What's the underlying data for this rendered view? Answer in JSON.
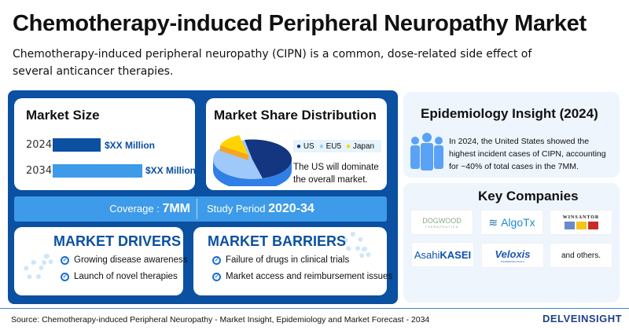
{
  "header": {
    "title": "Chemotherapy-induced Peripheral Neuropathy Market",
    "subtitle": "Chemotherapy-induced peripheral neuropathy (CIPN) is a common, dose-related side effect of several anticancer therapies."
  },
  "market_size": {
    "title": "Market Size",
    "bars": [
      {
        "year": "2024",
        "value": "$XX Million",
        "color": "#0b50a1",
        "relative": 0.57
      },
      {
        "year": "2034",
        "value": "$XX Million",
        "color": "#3d9be9",
        "relative": 1.0
      }
    ]
  },
  "market_share": {
    "title": "Market Share Distribution",
    "legend": [
      {
        "label": "US",
        "color": "#14357f"
      },
      {
        "label": "EU5",
        "color": "#9fc9fb"
      },
      {
        "label": "Japan",
        "color": "#ffd400"
      }
    ],
    "note": "The US will dominate the overall market."
  },
  "coverage": {
    "label": "Coverage :",
    "value": "7MM",
    "study_label": "Study Period",
    "study_value": "2020-34"
  },
  "drivers": {
    "title": "MARKET DRIVERS",
    "items": [
      "Growing disease awareness",
      "Launch of novel therapies"
    ]
  },
  "barriers": {
    "title": "MARKET BARRIERS",
    "items": [
      "Failure of drugs in clinical trials",
      "Market access and reimbursement issues"
    ]
  },
  "epidemiology": {
    "title": "Epidemiology Insight (2024)",
    "text": "In 2024, the United States showed the highest incident cases of CIPN, accounting for ~40% of total cases in the 7MM."
  },
  "companies": {
    "title": "Key Companies",
    "logos": [
      "DOGWOOD",
      "THERAPEUTICS",
      "AlgoTx",
      "WINSANTOR",
      "Asahi",
      "KASEI",
      "Veloxis",
      "PHARMACEUTICALS"
    ],
    "others": "and others."
  },
  "footer": {
    "source": "Source: Chemotherapy-induced Peripheral Neuropathy - Market Insight, Epidemiology and Market Forecast - 2034",
    "brand": "DELVEINSIGHT"
  }
}
